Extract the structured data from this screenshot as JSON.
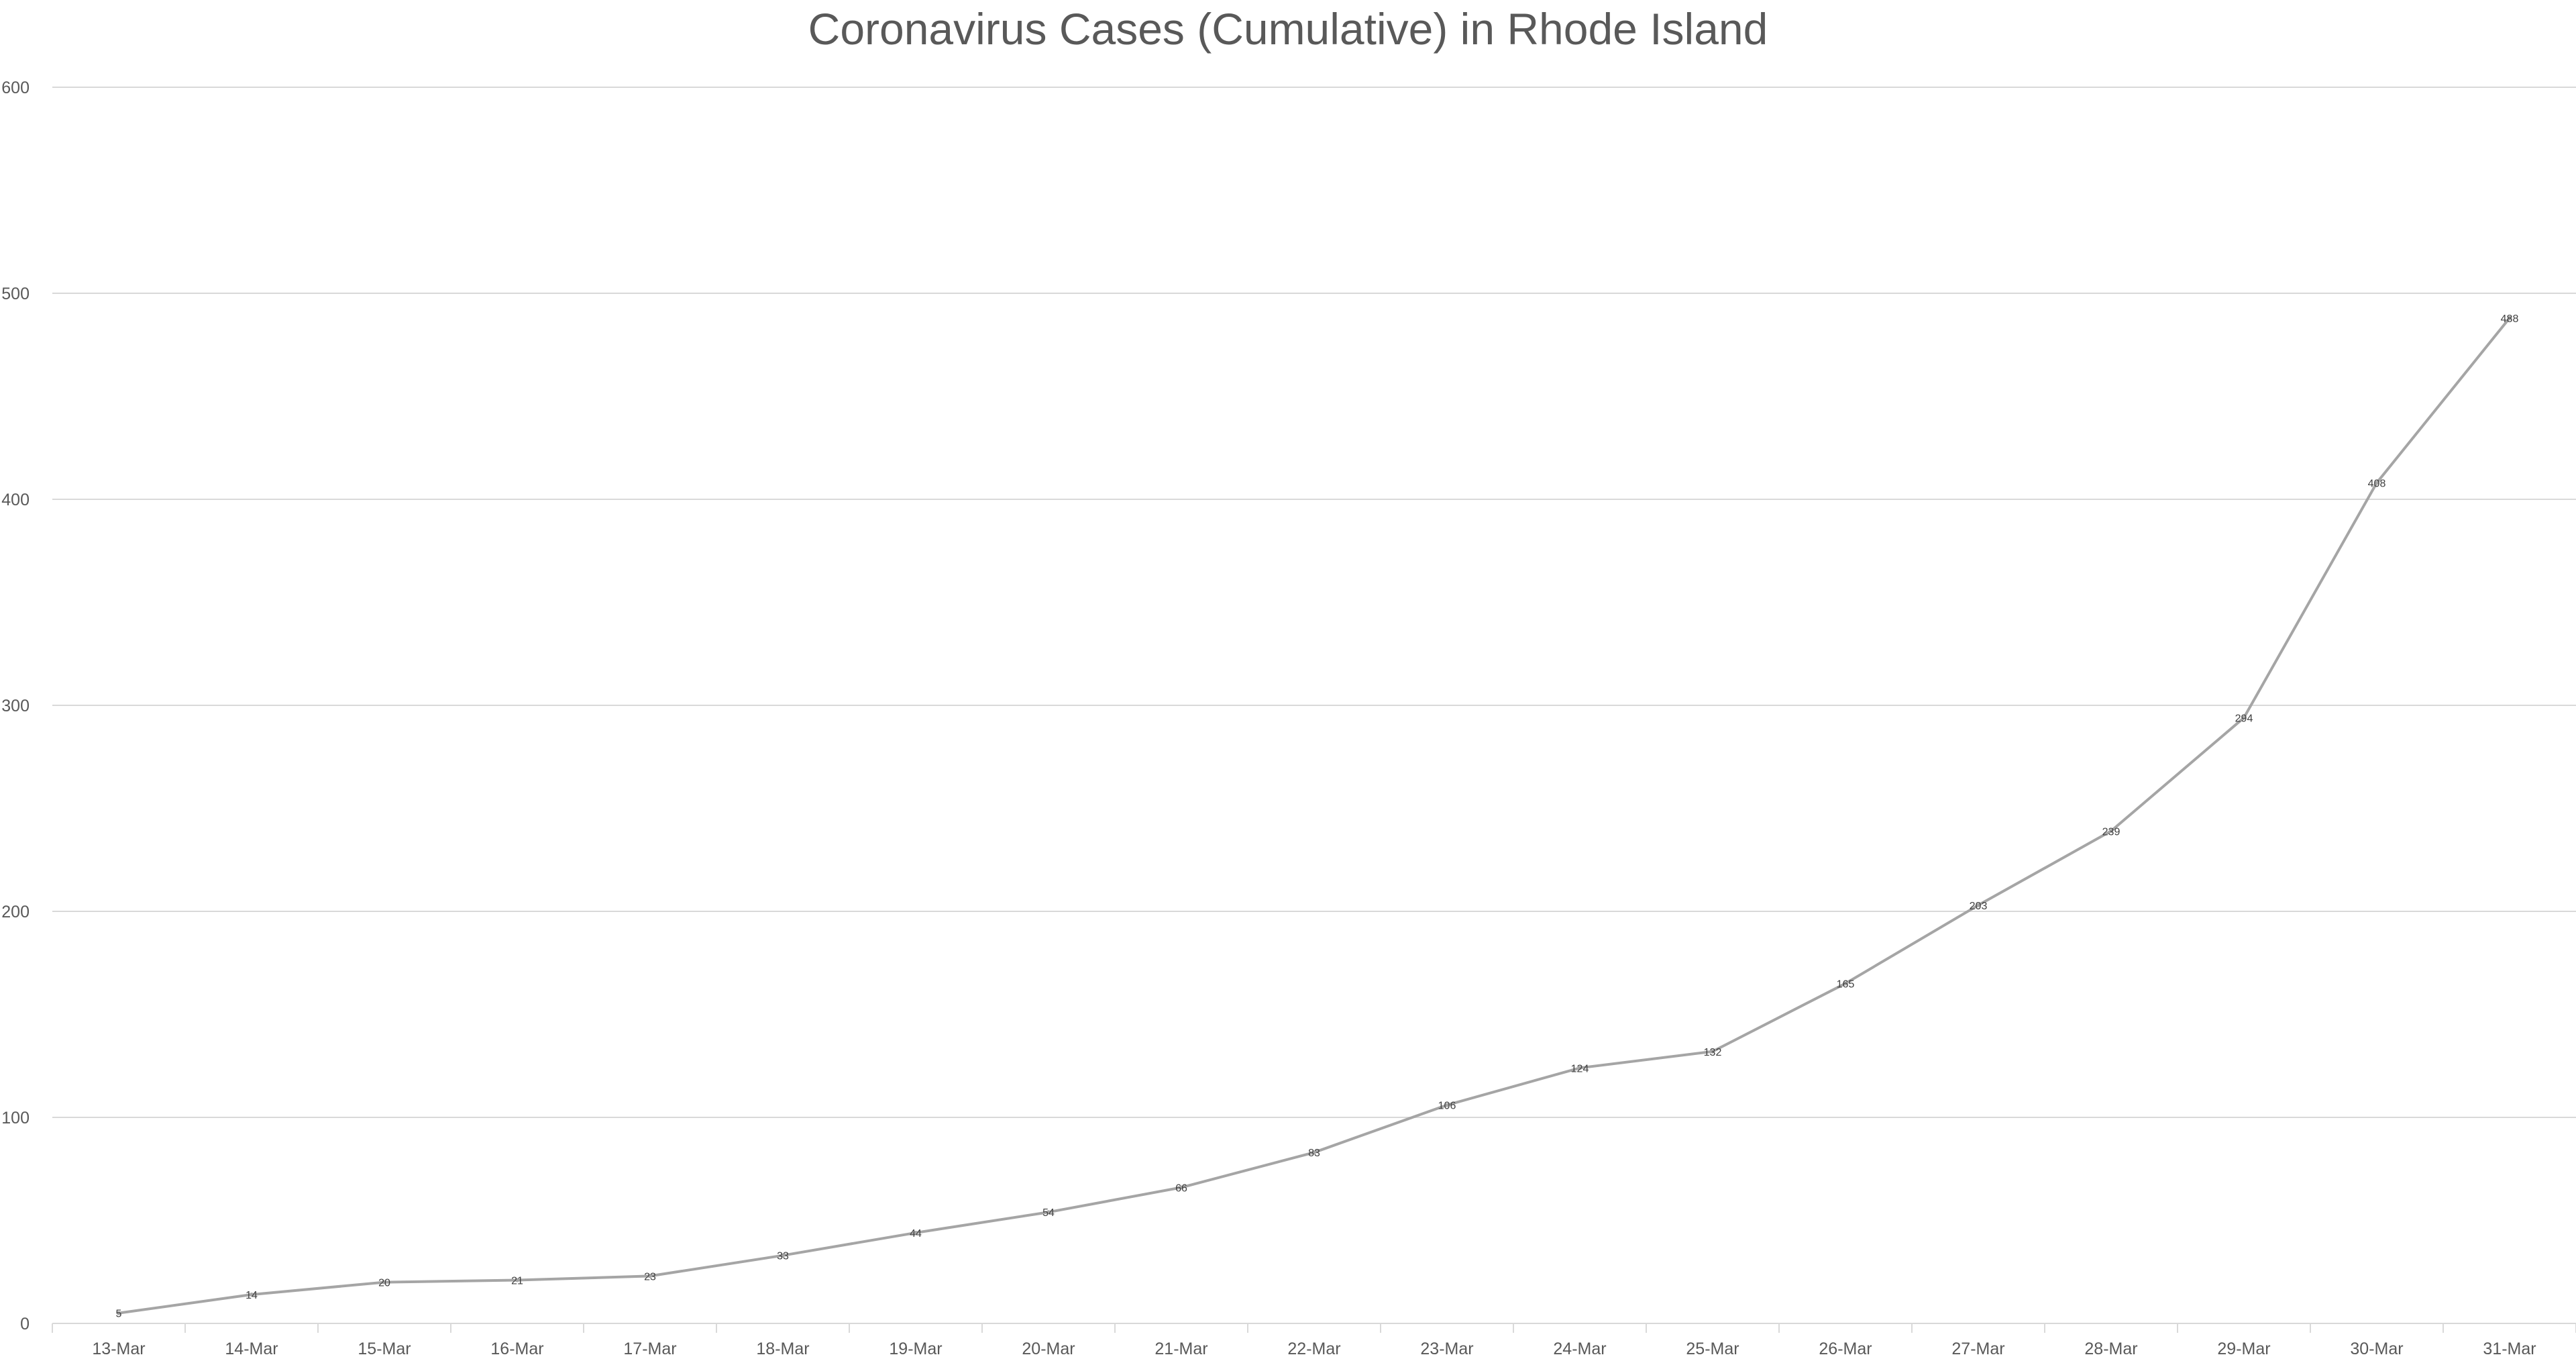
{
  "chart_data": {
    "type": "line",
    "title": "Coronavirus Cases (Cumulative) in Rhode Island",
    "xlabel": "",
    "ylabel": "",
    "categories": [
      "13-Mar",
      "14-Mar",
      "15-Mar",
      "16-Mar",
      "17-Mar",
      "18-Mar",
      "19-Mar",
      "20-Mar",
      "21-Mar",
      "22-Mar",
      "23-Mar",
      "24-Mar",
      "25-Mar",
      "26-Mar",
      "27-Mar",
      "28-Mar",
      "29-Mar",
      "30-Mar",
      "31-Mar"
    ],
    "series": [
      {
        "values": [
          5,
          14,
          20,
          21,
          23,
          33,
          44,
          54,
          66,
          83,
          106,
          124,
          132,
          165,
          203,
          239,
          294,
          408,
          488
        ],
        "color": "#a5a5a5",
        "data_labels": true
      }
    ],
    "ylim": [
      0,
      600
    ],
    "yticks": [
      0,
      100,
      200,
      300,
      400,
      500,
      600
    ],
    "grid": "horizontal",
    "legend": "none"
  }
}
